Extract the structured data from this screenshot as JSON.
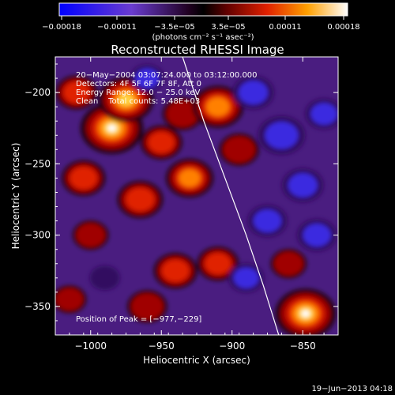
{
  "chart_data": {
    "type": "heatmap",
    "title": "Reconstructed RHESSI Image",
    "xlabel": "Heliocentric X (arcsec)",
    "ylabel": "Heliocentric Y (arcsec)",
    "xlim": [
      -1025,
      -825
    ],
    "ylim": [
      -370,
      -175
    ],
    "xticks": [
      {
        "value": -1000,
        "label": "−1000"
      },
      {
        "value": -950,
        "label": "−950"
      },
      {
        "value": -900,
        "label": "−900"
      },
      {
        "value": -850,
        "label": "−850"
      }
    ],
    "yticks": [
      {
        "value": -200,
        "label": "−200"
      },
      {
        "value": -250,
        "label": "−250"
      },
      {
        "value": -300,
        "label": "−300"
      },
      {
        "value": -350,
        "label": "−350"
      }
    ],
    "colorbar": {
      "range": [
        -0.00018,
        0.00018
      ],
      "ticks": [
        "−0.00018",
        "−0.00011",
        "−3.5e−05",
        "3.5e−05",
        "0.00011",
        "0.00018"
      ],
      "unit_label": "(photons cm⁻² s⁻¹ asec⁻²)"
    },
    "annotations": {
      "time_range": "20−May−2004 03:07:24.000 to 03:12:00.000",
      "detectors": "Detectors: 4F 5F 6F 7F 8F, Att 0",
      "energy_range": "Energy Range: 12.0 − 25.0 keV",
      "clean": "Clean    Total counts: 5.48E+03",
      "peak": "Position of Peak = [−977,−229]"
    },
    "limb_curve": [
      [
        -935,
        -175
      ],
      [
        -920,
        -220
      ],
      [
        -905,
        -260
      ],
      [
        -890,
        -300
      ],
      [
        -878,
        -335
      ],
      [
        -867,
        -370
      ]
    ],
    "blobs": [
      {
        "x": -985,
        "y": -225,
        "value": 1.0
      },
      {
        "x": -975,
        "y": -205,
        "value": 0.8
      },
      {
        "x": -1010,
        "y": -200,
        "value": 0.45
      },
      {
        "x": -1005,
        "y": -260,
        "value": 0.5
      },
      {
        "x": -1000,
        "y": -300,
        "value": 0.3
      },
      {
        "x": -965,
        "y": -275,
        "value": 0.55
      },
      {
        "x": -950,
        "y": -235,
        "value": 0.45
      },
      {
        "x": -935,
        "y": -215,
        "value": 0.4
      },
      {
        "x": -930,
        "y": -260,
        "value": 0.6
      },
      {
        "x": -910,
        "y": -210,
        "value": 0.7
      },
      {
        "x": -895,
        "y": -240,
        "value": 0.4
      },
      {
        "x": -940,
        "y": -325,
        "value": 0.5
      },
      {
        "x": -960,
        "y": -350,
        "value": 0.4
      },
      {
        "x": -910,
        "y": -320,
        "value": 0.45
      },
      {
        "x": -848,
        "y": -355,
        "value": 0.95
      },
      {
        "x": -860,
        "y": -320,
        "value": 0.3
      },
      {
        "x": -1015,
        "y": -345,
        "value": 0.25
      },
      {
        "x": -885,
        "y": -200,
        "value": -0.45
      },
      {
        "x": -865,
        "y": -230,
        "value": -0.6
      },
      {
        "x": -850,
        "y": -265,
        "value": -0.45
      },
      {
        "x": -835,
        "y": -215,
        "value": -0.35
      },
      {
        "x": -875,
        "y": -290,
        "value": -0.4
      },
      {
        "x": -890,
        "y": -330,
        "value": -0.3
      },
      {
        "x": -840,
        "y": -300,
        "value": -0.4
      },
      {
        "x": -960,
        "y": -190,
        "value": -0.25
      },
      {
        "x": -990,
        "y": -330,
        "value": -0.15
      }
    ]
  },
  "footer": {
    "date": "19−Jun−2013 04:18"
  }
}
